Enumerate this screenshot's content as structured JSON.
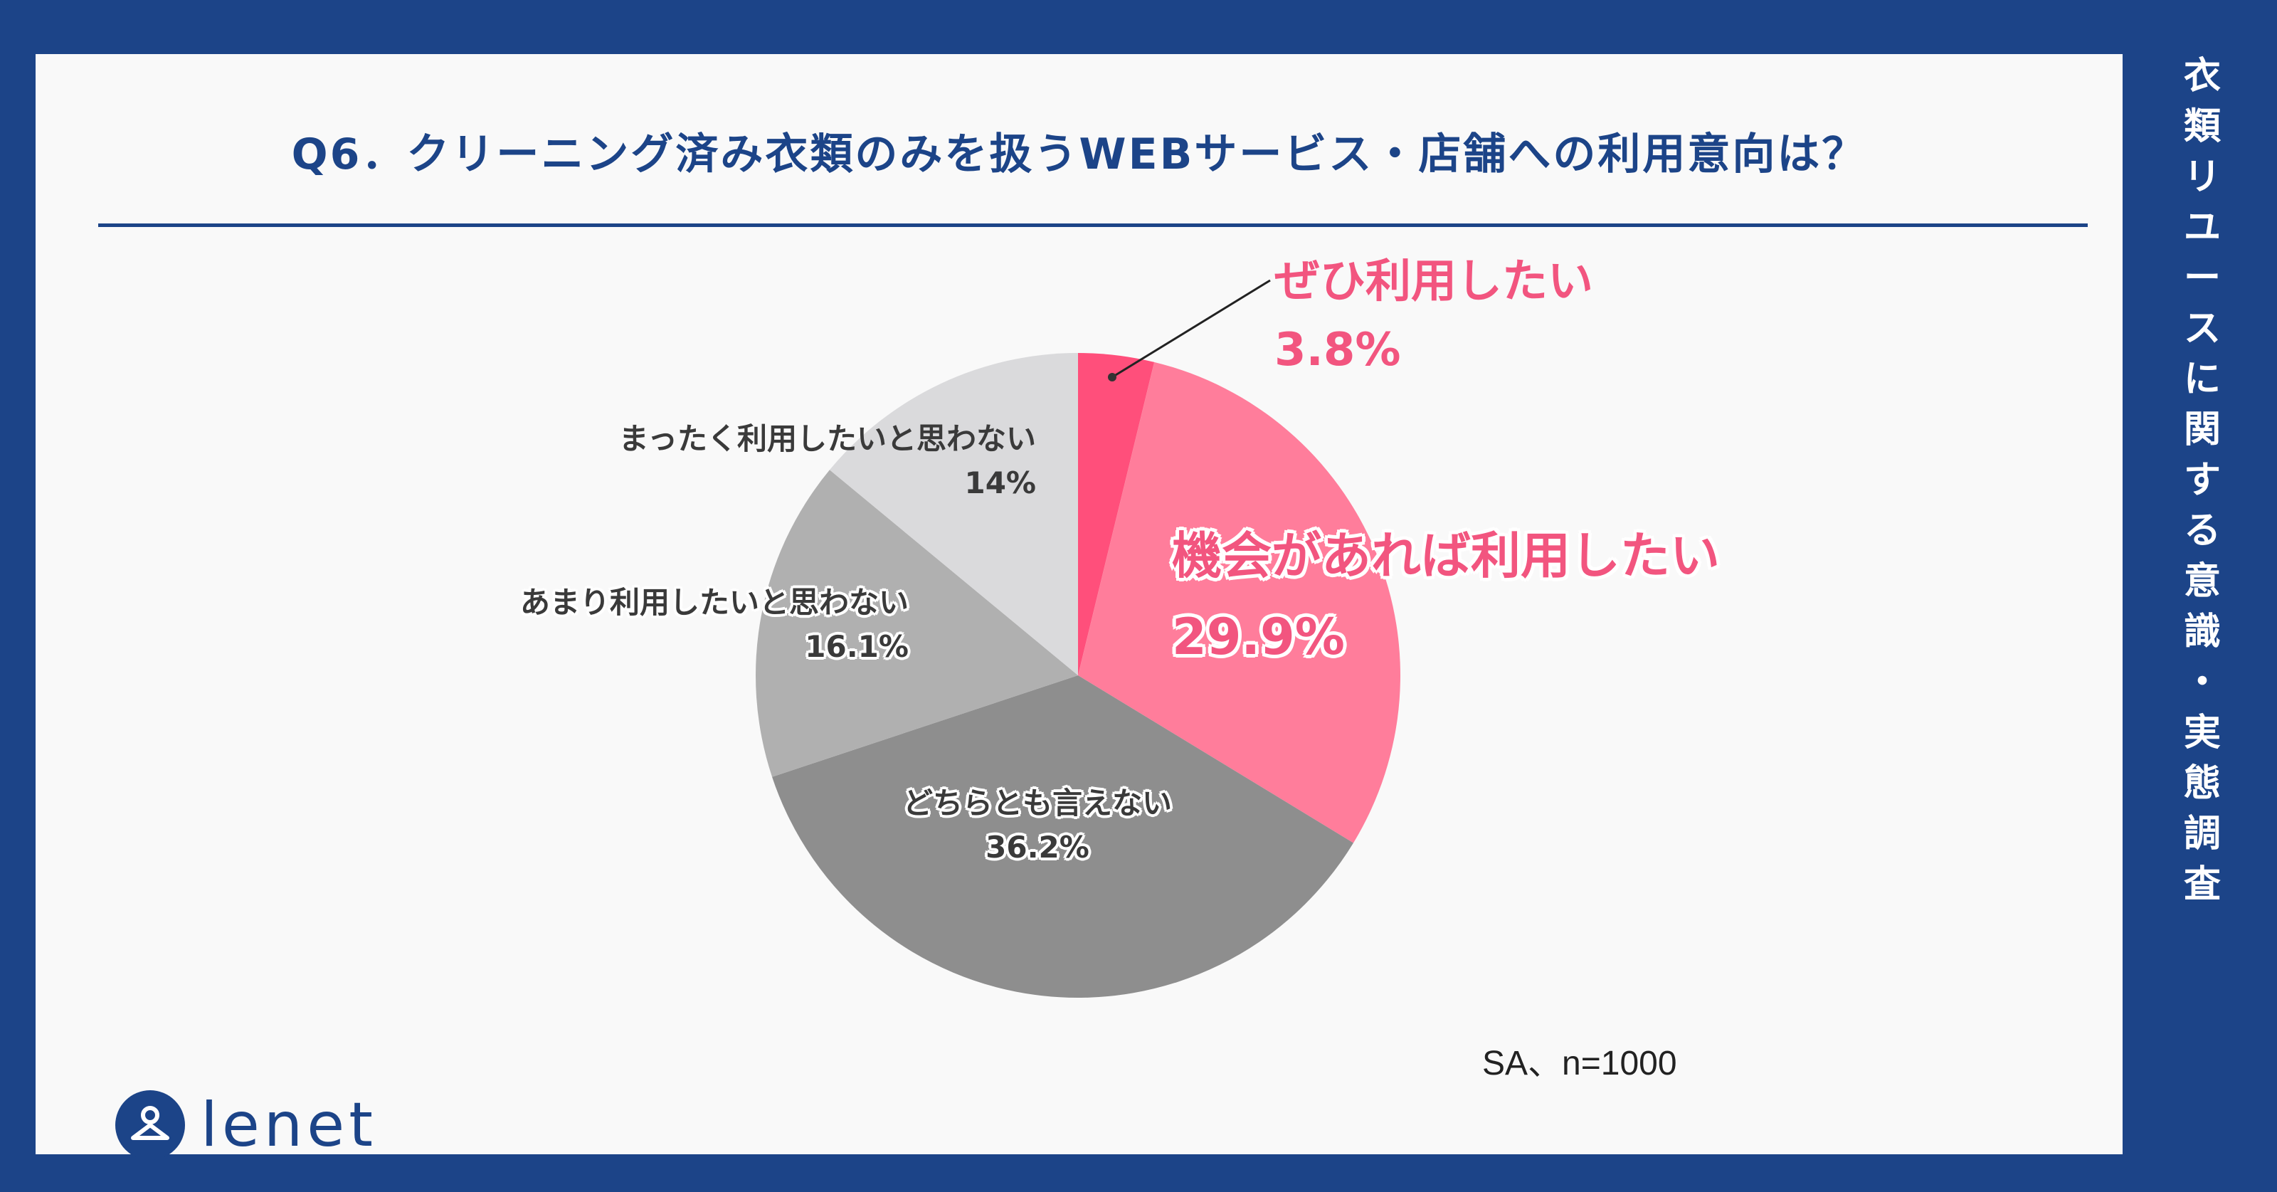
{
  "title": "Q6．クリーニング済み衣類のみを扱うWEBサービス・店舗への利用意向は？",
  "side_title": "衣類リユースに関する意識・実態調査",
  "note": "SA、n=1000",
  "brand": "lenet",
  "colors": {
    "navy": "#1c4488",
    "pink_strong": "#f2557f",
    "pink": "#ff7d9b",
    "gray_dark": "#8e8e8e",
    "gray_mid": "#b0b0b0",
    "gray_light": "#dadadc"
  },
  "chart_data": {
    "type": "pie",
    "start": "12 o'clock, clockwise",
    "slices": [
      {
        "label": "ぜひ利用したい",
        "value": 3.8,
        "display": "3.8%",
        "color": "#ff4f7b"
      },
      {
        "label": "機会があれば利用したい",
        "value": 29.9,
        "display": "29.9%",
        "color": "#ff7d9b"
      },
      {
        "label": "どちらとも言えない",
        "value": 36.2,
        "display": "36.2%",
        "color": "#8e8e8e"
      },
      {
        "label": "あまり利用したいと思わない",
        "value": 16.1,
        "display": "16.1%",
        "color": "#b0b0b0"
      },
      {
        "label": "まったく利用したいと思わない",
        "value": 14,
        "display": "14%",
        "color": "#dadadc"
      }
    ]
  }
}
